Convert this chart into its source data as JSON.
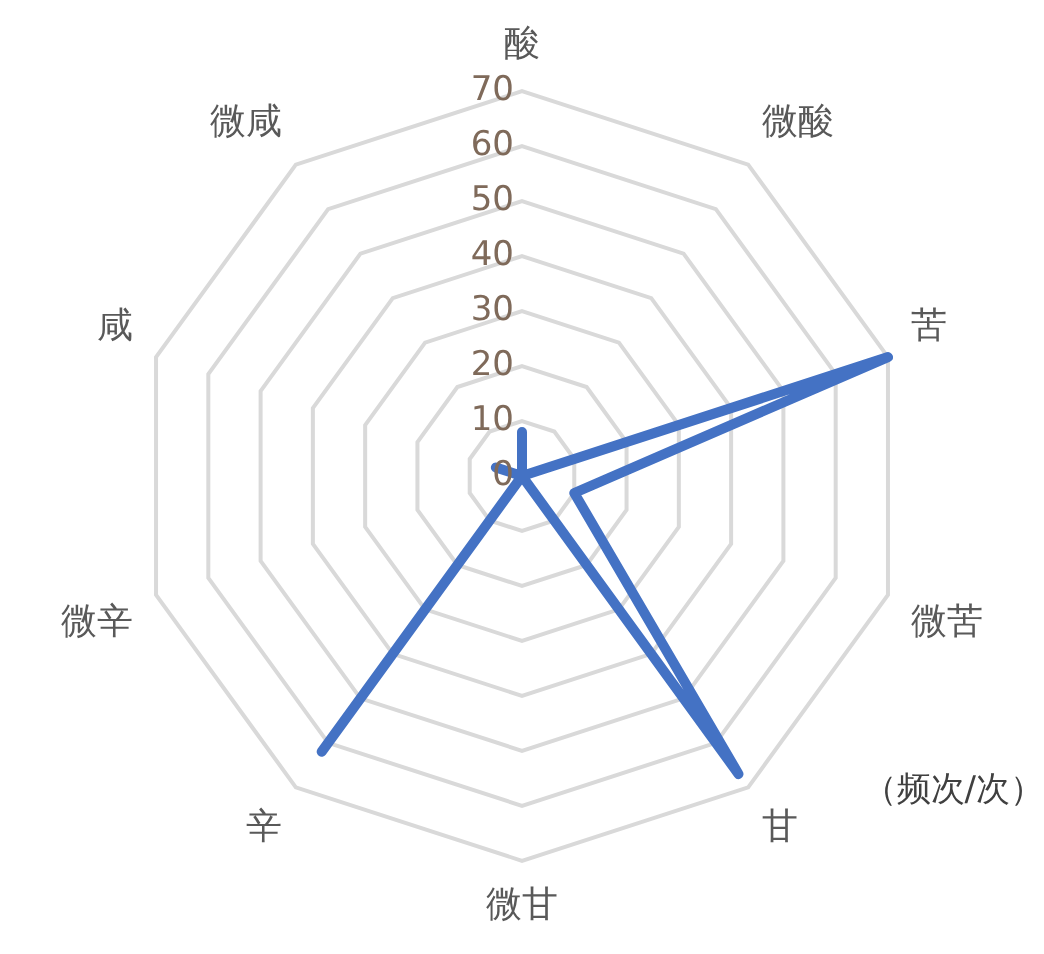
{
  "chart_data": {
    "type": "radar",
    "categories": [
      "酸",
      "微酸",
      "苦",
      "微苦",
      "甘",
      "微甘",
      "辛",
      "微辛",
      "咸",
      "微咸"
    ],
    "series": [
      {
        "color": "#4472c4",
        "values": [
          8,
          0,
          70,
          10,
          67,
          0,
          62,
          0,
          5,
          0
        ]
      }
    ],
    "ylim": [
      0,
      70
    ],
    "yticks": [
      0,
      10,
      20,
      30,
      40,
      50,
      60,
      70
    ],
    "grid": true,
    "legend": false,
    "marker": "none",
    "line_style": "solid",
    "annotations": [
      "（频次/次）"
    ]
  }
}
